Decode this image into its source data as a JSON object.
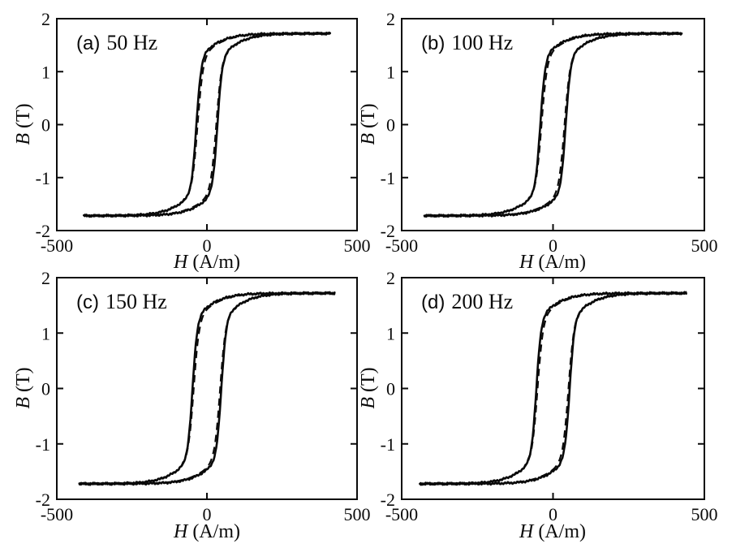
{
  "colors": {
    "ink": "#0a0a0a",
    "background": "#ffffff"
  },
  "chart_data": [
    {
      "type": "line",
      "panel": "a",
      "annotation": {
        "letter": "(a)",
        "frequency": "50 Hz"
      },
      "frequency_hz": 50,
      "xlabel": {
        "symbol": "H",
        "unit": "(A/m)"
      },
      "ylabel": {
        "symbol": "B",
        "unit": "(T)"
      },
      "xlim": [
        -500,
        500
      ],
      "ylim": [
        -2,
        2
      ],
      "xticks": [
        -500,
        0,
        500
      ],
      "yticks": [
        2,
        1,
        0,
        -1,
        -2
      ],
      "grid": false,
      "legend": "none",
      "series": [
        {
          "name": "loop-solid",
          "line_style": "solid"
        },
        {
          "name": "loop-dashed",
          "line_style": "dashed"
        }
      ],
      "loop": {
        "saturation_T": 1.7,
        "coercivity_Am": 35,
        "remanence_T": 1.38,
        "h_extent_Am": 410,
        "shape": {
          "w1": 1.25,
          "a1": 16,
          "w2": 0.47,
          "a2": 95
        }
      }
    },
    {
      "type": "line",
      "panel": "b",
      "annotation": {
        "letter": "(b)",
        "frequency": "100 Hz"
      },
      "frequency_hz": 100,
      "xlabel": {
        "symbol": "H",
        "unit": "(A/m)"
      },
      "ylabel": {
        "symbol": "B",
        "unit": "(T)"
      },
      "xlim": [
        -500,
        500
      ],
      "ylim": [
        -2,
        2
      ],
      "xticks": [
        -500,
        0,
        500
      ],
      "yticks": [
        2,
        1,
        0,
        -1,
        -2
      ],
      "grid": false,
      "legend": "none",
      "series": [
        {
          "name": "loop-solid",
          "line_style": "solid"
        },
        {
          "name": "loop-dashed",
          "line_style": "dashed"
        }
      ],
      "loop": {
        "saturation_T": 1.7,
        "coercivity_Am": 42,
        "remanence_T": 1.42,
        "h_extent_Am": 425,
        "shape": {
          "w1": 1.25,
          "a1": 16,
          "w2": 0.47,
          "a2": 95
        }
      }
    },
    {
      "type": "line",
      "panel": "c",
      "annotation": {
        "letter": "(c)",
        "frequency": "150 Hz"
      },
      "frequency_hz": 150,
      "xlabel": {
        "symbol": "H",
        "unit": "(A/m)"
      },
      "ylabel": {
        "symbol": "B",
        "unit": "(T)"
      },
      "xlim": [
        -500,
        500
      ],
      "ylim": [
        -2,
        2
      ],
      "xticks": [
        -500,
        0,
        500
      ],
      "yticks": [
        2,
        1,
        0,
        -1,
        -2
      ],
      "grid": false,
      "legend": "none",
      "series": [
        {
          "name": "loop-solid",
          "line_style": "solid"
        },
        {
          "name": "loop-dashed",
          "line_style": "dashed"
        }
      ],
      "loop": {
        "saturation_T": 1.7,
        "coercivity_Am": 48,
        "remanence_T": 1.45,
        "h_extent_Am": 425,
        "shape": {
          "w1": 1.25,
          "a1": 16,
          "w2": 0.47,
          "a2": 95
        }
      }
    },
    {
      "type": "line",
      "panel": "d",
      "annotation": {
        "letter": "(d)",
        "frequency": "200 Hz"
      },
      "frequency_hz": 200,
      "xlabel": {
        "symbol": "H",
        "unit": "(A/m)"
      },
      "ylabel": {
        "symbol": "B",
        "unit": "(T)"
      },
      "xlim": [
        -500,
        500
      ],
      "ylim": [
        -2,
        2
      ],
      "xticks": [
        -500,
        0,
        500
      ],
      "yticks": [
        2,
        1,
        0,
        -1,
        -2
      ],
      "grid": false,
      "legend": "none",
      "series": [
        {
          "name": "loop-solid",
          "line_style": "solid"
        },
        {
          "name": "loop-dashed",
          "line_style": "dashed"
        }
      ],
      "loop": {
        "saturation_T": 1.7,
        "coercivity_Am": 55,
        "remanence_T": 1.48,
        "h_extent_Am": 440,
        "shape": {
          "w1": 1.25,
          "a1": 16,
          "w2": 0.47,
          "a2": 95
        }
      }
    }
  ]
}
